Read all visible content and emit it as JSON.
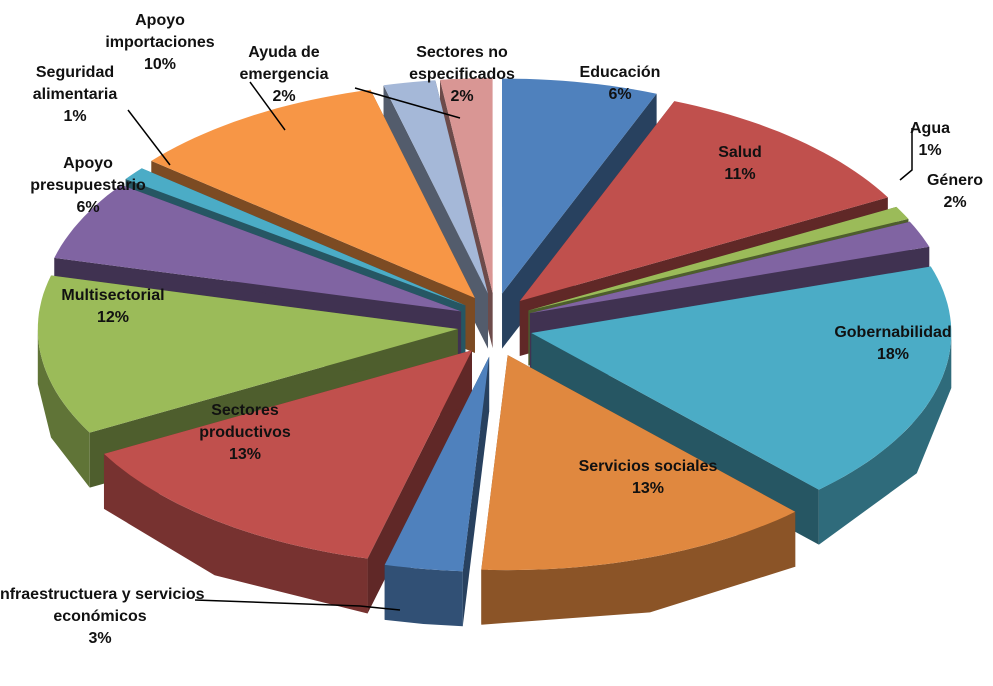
{
  "chart_data": {
    "type": "pie3d",
    "categories": [
      "Educación",
      "Salud",
      "Agua",
      "Género",
      "Gobernabilidad",
      "Servicios sociales",
      "Infraestructuera y servicios económicos",
      "Sectores productivos",
      "Multisectorial",
      "Apoyo presupuestario",
      "Seguridad alimentaria",
      "Apoyo importaciones",
      "Ayuda de emergencia",
      "Sectores no especificados"
    ],
    "values": [
      6,
      11,
      1,
      2,
      18,
      13,
      3,
      13,
      12,
      6,
      1,
      10,
      2,
      2
    ],
    "value_labels": [
      "6%",
      "11%",
      "1%",
      "2%",
      "18%",
      "13%",
      "3%",
      "13%",
      "12%",
      "6%",
      "1%",
      "10%",
      "2%",
      "2%"
    ],
    "colors": [
      "#4f81bd",
      "#c0504d",
      "#9bbb59",
      "#8064a2",
      "#4bacc6",
      "#e0883f",
      "#4f81bd",
      "#c0504d",
      "#9bbb59",
      "#8064a2",
      "#4bacc6",
      "#f79646",
      "#a5b8d8",
      "#d99694"
    ]
  }
}
